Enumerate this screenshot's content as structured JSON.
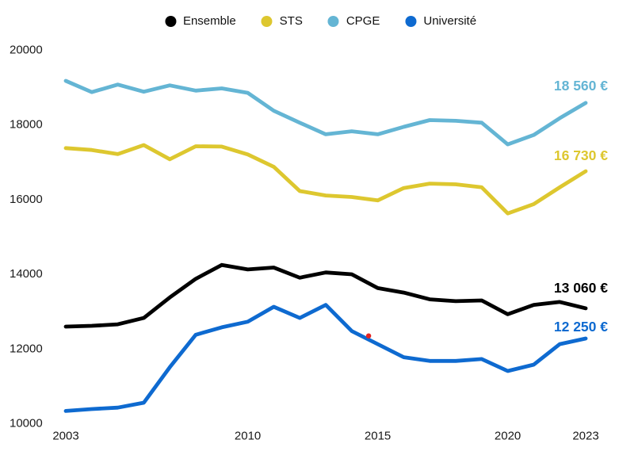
{
  "chart_data": {
    "type": "line",
    "title": "",
    "x": [
      2003,
      2004,
      2005,
      2006,
      2007,
      2008,
      2009,
      2010,
      2011,
      2012,
      2013,
      2014,
      2015,
      2016,
      2017,
      2018,
      2019,
      2020,
      2021,
      2022,
      2023
    ],
    "xlim": [
      2003,
      2023
    ],
    "ylim": [
      10000,
      20000
    ],
    "grid": false,
    "legend_position": "top",
    "x_ticks": [
      "2003",
      "2010",
      "2015",
      "2020",
      "2023"
    ],
    "y_ticks": [
      "20000",
      "18000",
      "16000",
      "14000",
      "12000",
      "10000"
    ],
    "series": [
      {
        "name": "Ensemble",
        "color": "#000000",
        "end_label": "13 060 €",
        "values": [
          12570,
          12590,
          12630,
          12800,
          13350,
          13850,
          14220,
          14100,
          14150,
          13880,
          14020,
          13970,
          13600,
          13480,
          13300,
          13250,
          13270,
          12900,
          13150,
          13230,
          13060
        ]
      },
      {
        "name": "STS",
        "color": "#ddc72f",
        "end_label": "16 730 €",
        "values": [
          17350,
          17300,
          17190,
          17430,
          17050,
          17400,
          17390,
          17180,
          16850,
          16200,
          16080,
          16040,
          15950,
          16280,
          16400,
          16380,
          16300,
          15600,
          15850,
          16300,
          16730
        ]
      },
      {
        "name": "CPGE",
        "color": "#64b5d4",
        "end_label": "18 560 €",
        "values": [
          19150,
          18850,
          19050,
          18860,
          19030,
          18890,
          18950,
          18830,
          18350,
          18030,
          17720,
          17800,
          17720,
          17920,
          18100,
          18080,
          18030,
          17450,
          17700,
          18150,
          18560
        ]
      },
      {
        "name": "Université",
        "color": "#0e6ad0",
        "end_label": "12 250 €",
        "values": [
          10310,
          10360,
          10400,
          10530,
          11480,
          12350,
          12550,
          12700,
          13100,
          12800,
          13150,
          12450,
          12100,
          11750,
          11650,
          11650,
          11700,
          11380,
          11550,
          12100,
          12250
        ]
      }
    ],
    "annotation": {
      "type": "point",
      "series": "Université",
      "x": 2014.65,
      "value": 12320,
      "color": "#e52421"
    }
  },
  "legend": {
    "items": [
      "Ensemble",
      "STS",
      "CPGE",
      "Université"
    ]
  }
}
